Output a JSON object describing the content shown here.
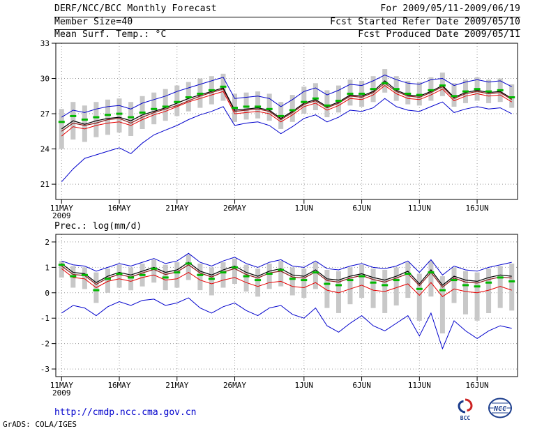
{
  "header": {
    "title": "DERF/NCC/BCC Monthly Forecast",
    "member_size": "Member Size=40",
    "temp_label": "Mean Surf. Temp.: °C",
    "for_range": "For 2009/05/11-2009/06/19",
    "refer_date": "Fcst Started Refer Date 2009/05/10",
    "produced_date": "Fcst Produced Date 2009/05/11"
  },
  "precip_label": "Prec.: log(mm/d)",
  "footer": {
    "url": "http://cmdp.ncc.cma.gov.cn",
    "bcc_label": "BCC",
    "ncc_label": "NCC",
    "credit": "GrADS: COLA/IGES"
  },
  "colors": {
    "envelope_blue": "#0000cc",
    "mean_black": "#000000",
    "dark_red": "#8b1a1a",
    "red": "#e60000",
    "green": "#00b800",
    "bar_gray": "#c8c8c8",
    "grid_gray": "#9a9a9a",
    "url_blue": "#0000cc",
    "logo_blue": "#1a3c8c",
    "logo_red": "#cc2222"
  },
  "chart_data": [
    {
      "type": "line",
      "title": "Mean Surf. Temp.: °C",
      "units": "°C",
      "n_points": 40,
      "ylim": [
        21,
        33
      ],
      "ylim_draw": [
        19.7,
        33
      ],
      "yticks": [
        21,
        24,
        27,
        30,
        33
      ],
      "x_tick_indices": [
        0,
        5,
        10,
        15,
        21,
        26,
        31,
        36
      ],
      "x_tick_labels": [
        "11MAY",
        "16MAY",
        "21MAY",
        "26MAY",
        "1JUN",
        "6JUN",
        "11JUN",
        "16JUN"
      ],
      "year_label": "2009",
      "grid": true,
      "legend": "none",
      "bars": {
        "name": "spread-bar",
        "color": "#c8c8c8",
        "low": [
          24.0,
          24.8,
          24.6,
          25.0,
          25.2,
          25.4,
          25.1,
          25.7,
          26.1,
          26.4,
          26.8,
          27.2,
          27.5,
          27.8,
          28.1,
          26.3,
          26.5,
          26.6,
          26.4,
          25.7,
          26.3,
          27.0,
          27.3,
          26.7,
          27.1,
          27.7,
          27.6,
          28.0,
          28.8,
          28.1,
          27.8,
          27.7,
          28.1,
          28.5,
          27.6,
          27.9,
          28.1,
          27.9,
          28.0,
          27.5
        ],
        "high": [
          27.4,
          28.0,
          27.7,
          28.0,
          28.2,
          28.3,
          28.0,
          28.5,
          28.8,
          29.1,
          29.4,
          29.7,
          30.0,
          30.2,
          30.4,
          28.7,
          28.8,
          28.9,
          28.7,
          28.0,
          28.6,
          29.3,
          29.6,
          29.0,
          29.4,
          29.9,
          29.8,
          30.2,
          30.8,
          30.2,
          29.8,
          29.7,
          30.1,
          30.5,
          29.6,
          29.9,
          30.1,
          29.9,
          30.0,
          29.5
        ]
      },
      "series": [
        {
          "name": "upper-envelope-line",
          "color": "#0000cc",
          "width": 1,
          "values": [
            26.7,
            27.3,
            27.1,
            27.4,
            27.6,
            27.7,
            27.4,
            27.9,
            28.2,
            28.5,
            28.9,
            29.2,
            29.5,
            29.8,
            30.1,
            28.3,
            28.4,
            28.5,
            28.3,
            27.6,
            28.2,
            28.9,
            29.2,
            28.6,
            29.0,
            29.5,
            29.4,
            29.8,
            30.3,
            29.9,
            29.6,
            29.5,
            29.9,
            30.0,
            29.4,
            29.7,
            29.9,
            29.7,
            29.8,
            29.3
          ]
        },
        {
          "name": "lower-envelope-line",
          "color": "#0000cc",
          "width": 1,
          "values": [
            21.2,
            22.3,
            23.2,
            23.5,
            23.8,
            24.1,
            23.6,
            24.5,
            25.2,
            25.6,
            26.0,
            26.5,
            26.9,
            27.2,
            27.6,
            26.0,
            26.2,
            26.3,
            26.0,
            25.3,
            25.9,
            26.6,
            26.9,
            26.3,
            26.7,
            27.3,
            27.2,
            27.5,
            28.3,
            27.6,
            27.3,
            27.2,
            27.6,
            28.0,
            27.1,
            27.4,
            27.6,
            27.4,
            27.5,
            27.0
          ]
        },
        {
          "name": "red-member-line",
          "color": "#e60000",
          "width": 1,
          "values": [
            25.1,
            25.9,
            25.7,
            26.0,
            26.2,
            26.3,
            26.0,
            26.5,
            26.9,
            27.2,
            27.6,
            28.0,
            28.3,
            28.6,
            28.9,
            27.0,
            27.1,
            27.2,
            27.0,
            26.3,
            26.9,
            27.6,
            27.9,
            27.3,
            27.7,
            28.3,
            28.2,
            28.6,
            29.4,
            28.7,
            28.3,
            28.2,
            28.6,
            29.1,
            28.1,
            28.5,
            28.7,
            28.5,
            28.6,
            28.0
          ]
        },
        {
          "name": "darkred-member-line",
          "color": "#8b1a1a",
          "width": 1.2,
          "values": [
            25.5,
            26.2,
            26.0,
            26.2,
            26.5,
            26.6,
            26.2,
            26.7,
            27.1,
            27.4,
            27.7,
            28.1,
            28.5,
            28.8,
            29.1,
            27.2,
            27.3,
            27.4,
            27.2,
            26.5,
            27.1,
            27.8,
            28.1,
            27.5,
            27.9,
            28.5,
            28.4,
            28.8,
            29.6,
            28.9,
            28.5,
            28.4,
            28.8,
            29.3,
            28.3,
            28.7,
            28.9,
            28.7,
            28.8,
            28.2
          ]
        },
        {
          "name": "ensemble-mean-line",
          "color": "#000000",
          "width": 1.2,
          "values": [
            25.7,
            26.4,
            26.1,
            26.4,
            26.6,
            26.7,
            26.4,
            26.9,
            27.2,
            27.5,
            27.9,
            28.3,
            28.6,
            28.9,
            29.2,
            27.3,
            27.4,
            27.5,
            27.3,
            26.6,
            27.2,
            27.9,
            28.2,
            27.6,
            28.0,
            28.6,
            28.5,
            28.9,
            29.8,
            29.0,
            28.6,
            28.5,
            28.9,
            29.4,
            28.4,
            28.8,
            29.0,
            28.8,
            28.9,
            28.3
          ]
        }
      ],
      "dashes": {
        "name": "green-dash-marker",
        "color": "#00b800",
        "values": [
          26.3,
          26.8,
          26.5,
          26.7,
          26.9,
          27.0,
          26.7,
          27.1,
          27.4,
          27.6,
          28.0,
          28.4,
          28.7,
          29.0,
          29.3,
          27.5,
          27.6,
          27.6,
          27.4,
          26.8,
          27.3,
          28.0,
          28.3,
          27.7,
          28.1,
          28.7,
          28.7,
          29.1,
          29.6,
          29.1,
          28.7,
          28.6,
          29.0,
          29.4,
          28.5,
          28.9,
          29.1,
          28.9,
          29.0,
          28.4
        ]
      }
    },
    {
      "type": "line",
      "title": "Prec.: log(mm/d)",
      "units": "log(mm/d)",
      "n_points": 40,
      "ylim": [
        -3,
        2
      ],
      "ylim_draw": [
        -3.3,
        2.3
      ],
      "yticks": [
        -3,
        -2,
        -1,
        0,
        1,
        2
      ],
      "x_tick_indices": [
        0,
        5,
        10,
        15,
        21,
        26,
        31,
        36
      ],
      "x_tick_labels": [
        "11MAY",
        "16MAY",
        "21MAY",
        "26MAY",
        "1JUN",
        "6JUN",
        "11JUN",
        "16JUN"
      ],
      "year_label": "2009",
      "grid": true,
      "legend": "none",
      "bars": {
        "name": "spread-bar",
        "color": "#c8c8c8",
        "low": [
          0.6,
          0.2,
          0.15,
          -0.4,
          0.0,
          0.2,
          0.1,
          0.25,
          0.4,
          0.1,
          0.2,
          0.5,
          0.1,
          -0.1,
          0.2,
          0.35,
          0.05,
          -0.15,
          0.15,
          0.25,
          -0.1,
          -0.2,
          0.15,
          -0.6,
          -0.8,
          -0.45,
          -0.2,
          -0.6,
          -0.8,
          -0.5,
          -0.2,
          -1.1,
          -0.15,
          -1.6,
          -0.4,
          -0.85,
          -1.1,
          -0.8,
          -0.6,
          -0.7
        ],
        "high": [
          1.25,
          1.05,
          1.0,
          0.8,
          0.95,
          1.1,
          1.0,
          1.15,
          1.3,
          1.1,
          1.2,
          1.5,
          1.15,
          1.0,
          1.2,
          1.35,
          1.1,
          0.95,
          1.15,
          1.25,
          1.0,
          0.95,
          1.2,
          0.9,
          0.85,
          1.0,
          1.1,
          0.95,
          0.9,
          1.0,
          1.2,
          0.75,
          1.25,
          0.65,
          1.0,
          0.85,
          0.8,
          0.95,
          1.05,
          1.15
        ]
      },
      "series": [
        {
          "name": "upper-envelope-line",
          "color": "#0000cc",
          "width": 1,
          "values": [
            1.25,
            1.1,
            1.05,
            0.85,
            1.0,
            1.15,
            1.05,
            1.2,
            1.35,
            1.15,
            1.25,
            1.55,
            1.2,
            1.05,
            1.25,
            1.4,
            1.15,
            1.0,
            1.2,
            1.3,
            1.05,
            1.0,
            1.25,
            0.95,
            0.9,
            1.05,
            1.15,
            1.0,
            0.95,
            1.05,
            1.25,
            0.8,
            1.3,
            0.7,
            1.05,
            0.9,
            0.85,
            1.0,
            1.1,
            1.2
          ]
        },
        {
          "name": "lower-envelope-line",
          "color": "#0000cc",
          "width": 1,
          "values": [
            -0.8,
            -0.5,
            -0.6,
            -0.9,
            -0.55,
            -0.35,
            -0.5,
            -0.3,
            -0.25,
            -0.5,
            -0.4,
            -0.2,
            -0.6,
            -0.8,
            -0.55,
            -0.4,
            -0.7,
            -0.9,
            -0.6,
            -0.5,
            -0.85,
            -1.0,
            -0.6,
            -1.3,
            -1.55,
            -1.2,
            -0.9,
            -1.3,
            -1.5,
            -1.2,
            -0.9,
            -1.7,
            -0.8,
            -2.2,
            -1.1,
            -1.5,
            -1.8,
            -1.5,
            -1.3,
            -1.4
          ]
        },
        {
          "name": "red-member-line",
          "color": "#e60000",
          "width": 1,
          "values": [
            0.95,
            0.6,
            0.55,
            0.2,
            0.45,
            0.55,
            0.45,
            0.6,
            0.7,
            0.5,
            0.55,
            0.8,
            0.5,
            0.35,
            0.5,
            0.6,
            0.4,
            0.25,
            0.4,
            0.45,
            0.25,
            0.2,
            0.4,
            0.1,
            0.0,
            0.15,
            0.3,
            0.1,
            0.05,
            0.2,
            0.35,
            -0.1,
            0.4,
            -0.15,
            0.15,
            0.05,
            0.0,
            0.1,
            0.25,
            0.1
          ]
        },
        {
          "name": "darkred-member-line",
          "color": "#8b1a1a",
          "width": 1.2,
          "values": [
            1.05,
            0.72,
            0.68,
            0.33,
            0.58,
            0.72,
            0.62,
            0.78,
            0.92,
            0.72,
            0.82,
            1.1,
            0.78,
            0.62,
            0.82,
            0.95,
            0.72,
            0.58,
            0.78,
            0.85,
            0.62,
            0.58,
            0.82,
            0.48,
            0.42,
            0.58,
            0.68,
            0.52,
            0.42,
            0.58,
            0.75,
            0.28,
            0.8,
            0.22,
            0.58,
            0.42,
            0.38,
            0.52,
            0.62,
            0.58
          ]
        },
        {
          "name": "ensemble-mean-line",
          "color": "#000000",
          "width": 1.2,
          "values": [
            1.15,
            0.8,
            0.75,
            0.4,
            0.65,
            0.8,
            0.7,
            0.85,
            1.0,
            0.8,
            0.9,
            1.2,
            0.85,
            0.7,
            0.9,
            1.05,
            0.8,
            0.65,
            0.85,
            0.95,
            0.7,
            0.65,
            0.9,
            0.55,
            0.5,
            0.65,
            0.75,
            0.6,
            0.5,
            0.65,
            0.85,
            0.35,
            0.9,
            0.3,
            0.65,
            0.5,
            0.45,
            0.6,
            0.7,
            0.65
          ]
        }
      ],
      "dashes": {
        "name": "green-dash-marker",
        "color": "#00b800",
        "values": [
          1.1,
          0.65,
          0.7,
          0.1,
          0.55,
          0.75,
          0.6,
          0.7,
          0.95,
          0.6,
          0.8,
          1.15,
          0.7,
          0.55,
          0.8,
          1.0,
          0.65,
          0.5,
          0.75,
          0.9,
          0.55,
          0.5,
          0.8,
          0.35,
          0.3,
          0.5,
          0.65,
          0.4,
          0.3,
          0.5,
          0.75,
          0.15,
          0.8,
          0.1,
          0.5,
          0.3,
          0.25,
          0.4,
          0.6,
          0.45
        ]
      }
    }
  ]
}
